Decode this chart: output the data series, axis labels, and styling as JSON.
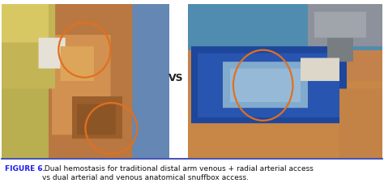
{
  "figure_width": 4.74,
  "figure_height": 2.42,
  "dpi": 100,
  "background_color": "#ffffff",
  "vs_text": "VS",
  "vs_fontsize": 9,
  "vs_fontweight": "bold",
  "vs_color": "#222222",
  "caption_bold_part": "FIGURE 6.",
  "caption_regular_part": " Dual hemostasis for traditional distal arm venous + radial arterial access\nvs dual arterial and venous anatomical snuffbox access.",
  "caption_fontsize": 6.5,
  "caption_bold_color": "#1a1aee",
  "caption_color": "#111111",
  "separator_color": "#2233aa",
  "separator_lw": 1.2,
  "orange_color": "#e07020",
  "circle_lw": 1.6
}
